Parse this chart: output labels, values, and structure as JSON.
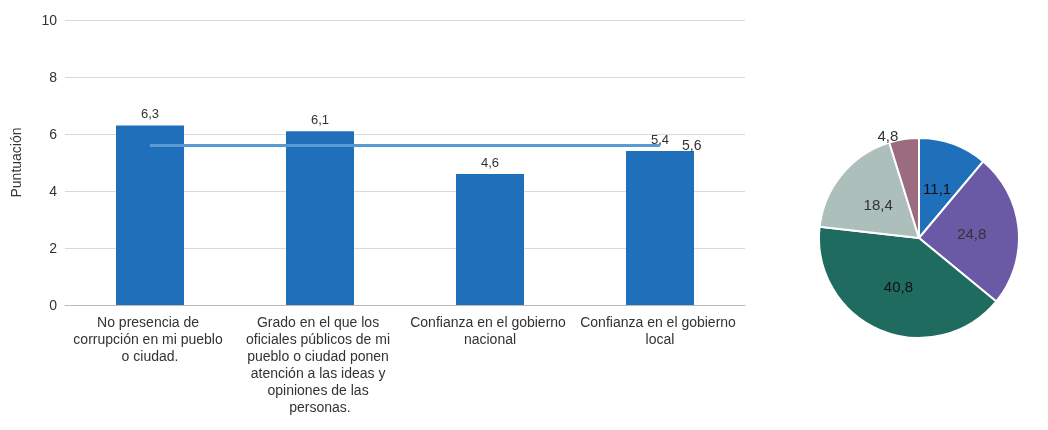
{
  "chart_data": [
    {
      "type": "bar",
      "ylabel": "Puntuación",
      "categories": [
        "No presencia de corrupción en mi pueblo o ciudad.",
        "Grado en el que los oficiales públicos de mi pueblo o ciudad ponen atención a las ideas y opiniones de las personas.",
        "Confianza en el gobierno nacional",
        "Confianza en el gobierno local"
      ],
      "values": [
        6.3,
        6.1,
        4.6,
        5.4
      ],
      "value_labels": [
        "6,3",
        "6,1",
        "4,6",
        "5,4"
      ],
      "color": "#1f6fba",
      "ylim": [
        0,
        10
      ],
      "yticks": [
        0,
        2,
        4,
        6,
        8,
        10
      ],
      "grid": "y",
      "ref_lines": [
        {
          "axis": "y",
          "value": 5.6,
          "label": "5,6",
          "color": "#5b9bd5"
        }
      ]
    },
    {
      "type": "pie",
      "categories": [
        null,
        null,
        null,
        null,
        null
      ],
      "values": [
        11.1,
        24.8,
        40.8,
        18.4,
        4.8
      ],
      "value_labels": [
        "11,1",
        "24,8",
        "40,8",
        "18,4",
        "4,8"
      ],
      "colors": [
        "#1f6fba",
        "#6a5aa6",
        "#1f6b60",
        "#adbfba",
        "#9b6b7e"
      ]
    }
  ]
}
